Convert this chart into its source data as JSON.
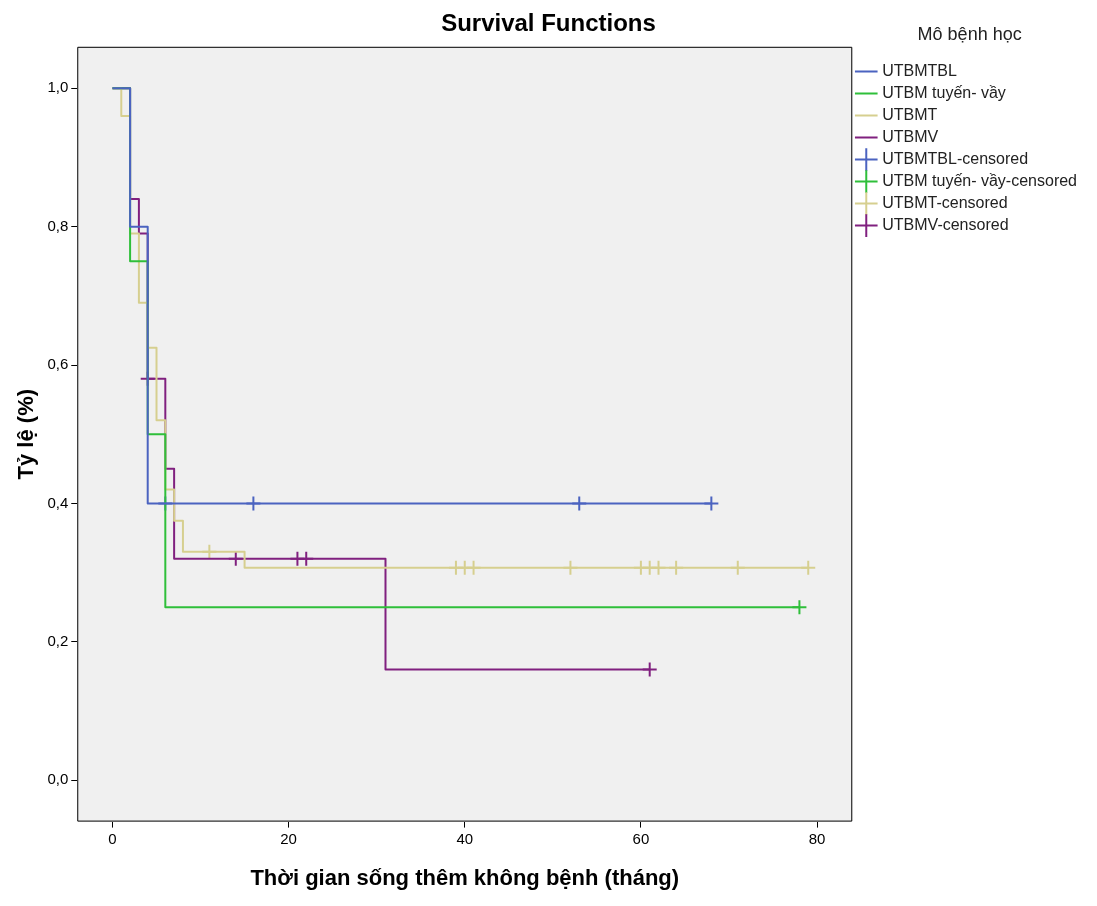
{
  "chart_data": {
    "type": "step",
    "title": "Survival Functions",
    "xlabel": "Thời gian sống thêm không bệnh (tháng)",
    "ylabel": "Tỷ lệ (%)",
    "legend_title": "Mô bệnh học",
    "legend": "top right",
    "grid": false,
    "line_style": "solid",
    "xlim": [
      -4,
      84
    ],
    "xticks": [
      0,
      20,
      40,
      60,
      80
    ],
    "ylim": [
      -0.06,
      1.06
    ],
    "yticks": [
      {
        "value": 0,
        "label": "0,0"
      },
      {
        "value": 0.2,
        "label": "0,2"
      },
      {
        "value": 0.4,
        "label": "0,4"
      },
      {
        "value": 0.6,
        "label": "0,6"
      },
      {
        "value": 0.8,
        "label": "0,8"
      },
      {
        "value": 1,
        "label": "1,0"
      }
    ],
    "series": [
      {
        "name": "UTBMTBL",
        "color": "#4b63c0",
        "x": [
          0,
          2,
          4,
          68
        ],
        "values": [
          1,
          0.8,
          0.4,
          0.4
        ]
      },
      {
        "name": "UTBM tuyến- vầy",
        "color": "#2fbf3a",
        "x": [
          0,
          2,
          4,
          6,
          78
        ],
        "values": [
          1,
          0.75,
          0.5,
          0.25,
          0.25
        ]
      },
      {
        "name": "UTBMT",
        "color": "#d6cf8f",
        "x": [
          0,
          1,
          2,
          3,
          4,
          5,
          6,
          7,
          8,
          15,
          79
        ],
        "values": [
          1,
          0.96,
          0.79,
          0.69,
          0.625,
          0.52,
          0.42,
          0.375,
          0.33,
          0.307,
          0.307
        ]
      },
      {
        "name": "UTBMV",
        "color": "#80207f",
        "x": [
          0,
          2,
          3,
          4,
          6,
          7,
          31,
          61
        ],
        "values": [
          1,
          0.84,
          0.79,
          0.58,
          0.45,
          0.32,
          0.16,
          0.16
        ]
      },
      {
        "name": "UTBMTBL-censored",
        "type": "scatter",
        "marker": "cross",
        "color": "#4b63c0",
        "x": [
          6,
          16,
          53,
          68
        ],
        "values": [
          0.4,
          0.4,
          0.4,
          0.4
        ]
      },
      {
        "name": "UTBM tuyến- vầy-censored",
        "type": "scatter",
        "marker": "cross",
        "color": "#2fbf3a",
        "x": [
          78
        ],
        "values": [
          0.25
        ]
      },
      {
        "name": "UTBMT-censored",
        "type": "scatter",
        "marker": "cross",
        "color": "#d6cf8f",
        "x": [
          11,
          39,
          40,
          41,
          52,
          60,
          61,
          62,
          64,
          71,
          79
        ],
        "values": [
          0.33,
          0.307,
          0.307,
          0.307,
          0.307,
          0.307,
          0.307,
          0.307,
          0.307,
          0.307,
          0.307
        ]
      },
      {
        "name": "UTBMV-censored",
        "type": "scatter",
        "marker": "cross",
        "color": "#80207f",
        "x": [
          4,
          14,
          21,
          22,
          61
        ],
        "values": [
          0.58,
          0.32,
          0.32,
          0.32,
          0.16
        ]
      }
    ]
  }
}
